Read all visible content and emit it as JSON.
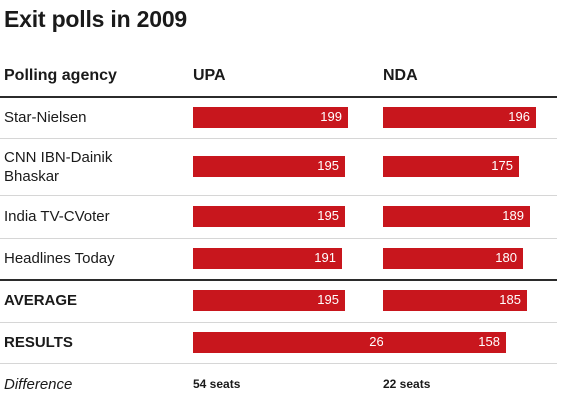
{
  "title": "Exit polls in 2009",
  "headers": {
    "agency": "Polling agency",
    "upa": "UPA",
    "nda": "NDA"
  },
  "chart_data": {
    "type": "bar",
    "title": "Exit polls in 2009",
    "categories": [
      "Star-Nielsen",
      "CNN IBN-Dainik Bhaskar",
      "India TV-CVoter",
      "Headlines Today",
      "AVERAGE",
      "RESULTS"
    ],
    "series": [
      {
        "name": "UPA",
        "values": [
          199,
          195,
          195,
          191,
          195,
          262
        ]
      },
      {
        "name": "NDA",
        "values": [
          196,
          175,
          189,
          180,
          185,
          158
        ]
      }
    ],
    "xlim": [
      0,
      282
    ],
    "bar_color": "#c8161d"
  },
  "rows": [
    {
      "label": "Star-Nielsen",
      "upa": "199",
      "nda": "196"
    },
    {
      "label": "CNN IBN-Dainik Bhaskar",
      "upa": "195",
      "nda": "175"
    },
    {
      "label": "India TV-CVoter",
      "upa": "195",
      "nda": "189"
    },
    {
      "label": "Headlines Today",
      "upa": "191",
      "nda": "180"
    },
    {
      "label": "AVERAGE",
      "upa": "195",
      "nda": "185"
    },
    {
      "label": "RESULTS",
      "upa": "262",
      "nda": "158"
    }
  ],
  "difference": {
    "label": "Difference",
    "upa": "54 seats",
    "nda": "22 seats"
  }
}
